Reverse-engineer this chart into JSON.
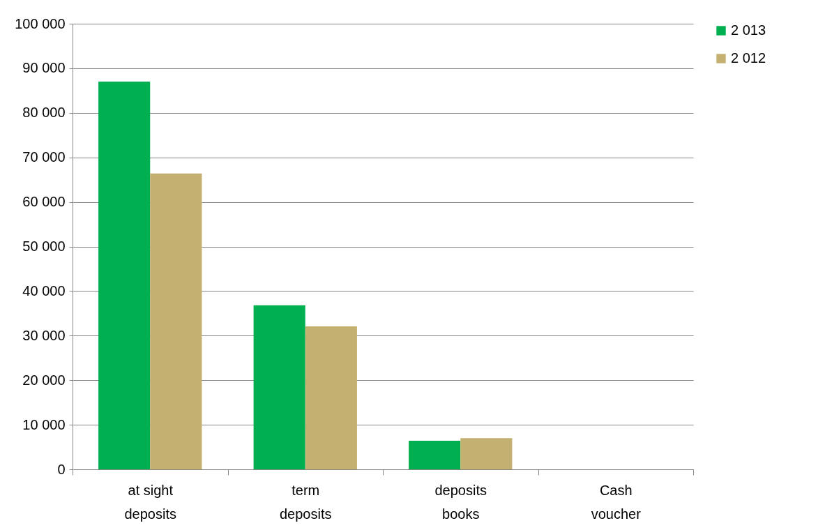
{
  "chart_data": {
    "type": "bar",
    "categories": [
      "at sight deposits",
      "term deposits",
      "deposits books",
      "Cash voucher"
    ],
    "series": [
      {
        "name": "2 013",
        "color": "#00b050",
        "values": [
          87000,
          36800,
          6400,
          0
        ]
      },
      {
        "name": "2 012",
        "color": "#c4b071",
        "values": [
          66400,
          32100,
          7000,
          0
        ]
      }
    ],
    "ylim": [
      0,
      100000
    ],
    "yticks": [
      0,
      {
        "value": 10000,
        "label": "10 000"
      },
      {
        "value": 20000,
        "label": "20 000"
      },
      {
        "value": 30000,
        "label": "30 000"
      },
      {
        "value": 40000,
        "label": "40 000"
      },
      {
        "value": 50000,
        "label": "50 000"
      },
      {
        "value": 60000,
        "label": "60 000"
      },
      {
        "value": 70000,
        "label": "70 000"
      },
      {
        "value": 80000,
        "label": "80 000"
      },
      {
        "value": 90000,
        "label": "90 000"
      },
      {
        "value": 100000,
        "label": "100 000"
      }
    ],
    "grid": "y",
    "legend": "right"
  }
}
